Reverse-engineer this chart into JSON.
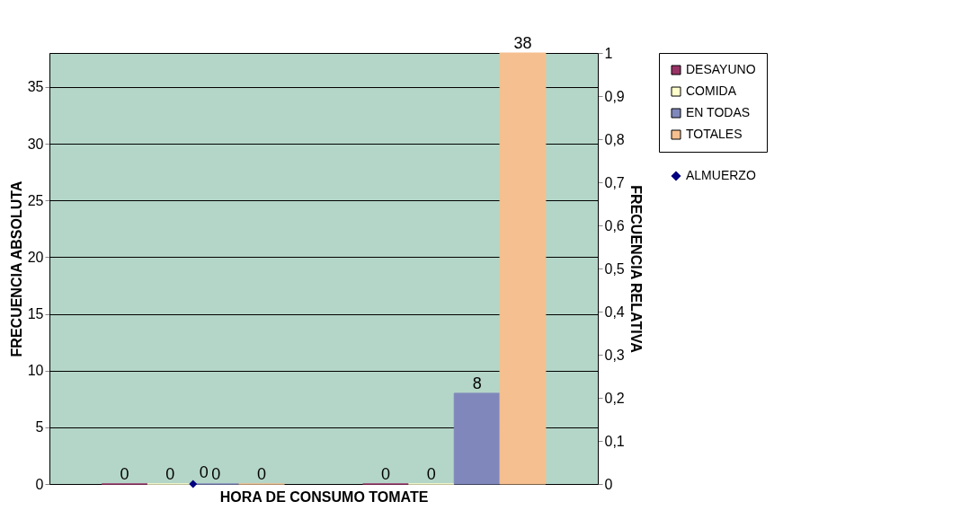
{
  "chart_data": {
    "type": "bar",
    "xlabel": "HORA DE CONSUMO TOMATE",
    "ylabel": "FRECUENCIA ABSOLUTA",
    "y2label": "FRECUENCIA RELATIVA",
    "categories": [
      null,
      null
    ],
    "series": [
      {
        "name": "DESAYUNO",
        "color": "#993366",
        "values": [
          0,
          0
        ]
      },
      {
        "name": "COMIDA",
        "color": "#ffffcc",
        "values": [
          0,
          0
        ]
      },
      {
        "name": "EN TODAS",
        "color": "#8088bb",
        "values": [
          0,
          8
        ]
      },
      {
        "name": "TOTALES",
        "color": "#f5bf8f",
        "values": [
          0,
          38
        ]
      },
      {
        "name": "ALMUERZO",
        "color": "#000080",
        "type": "line",
        "axis": "y2",
        "values": [
          0,
          null
        ]
      }
    ],
    "ylim": [
      0,
      38
    ],
    "yticks": [
      0,
      5,
      10,
      15,
      20,
      25,
      30,
      35
    ],
    "y2lim": [
      0,
      1
    ],
    "y2ticks": [
      0,
      {
        "value": 0.1,
        "label": "0,1"
      },
      {
        "value": 0.2,
        "label": "0,2"
      },
      {
        "value": 0.3,
        "label": "0,3"
      },
      {
        "value": 0.4,
        "label": "0,4"
      },
      {
        "value": 0.5,
        "label": "0,5"
      },
      {
        "value": 0.6,
        "label": "0,6"
      },
      {
        "value": 0.7,
        "label": "0,7"
      },
      {
        "value": 0.8,
        "label": "0,8"
      },
      {
        "value": 0.9,
        "label": "0,9"
      },
      1
    ],
    "grid": "y",
    "legend": "right",
    "marker": "diamond",
    "data_labels": true
  }
}
